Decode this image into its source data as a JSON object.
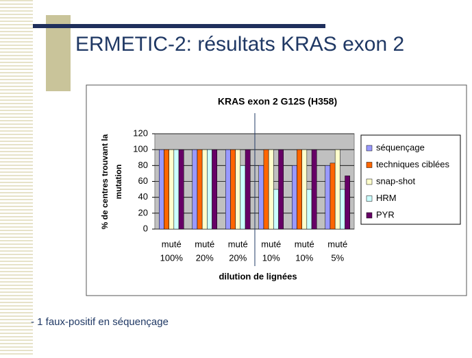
{
  "slide_title": "ERMETIC-2: résultats KRAS exon 2",
  "note": "- 1 faux-positif en séquençage",
  "chart_data": {
    "type": "bar",
    "title": "KRAS exon 2 G12S (H358)",
    "y_label": [
      "% de centres trouvant la",
      "mutation"
    ],
    "x_label": "dilution de lignées",
    "categories": [
      [
        "muté",
        "100%"
      ],
      [
        "muté",
        "20%"
      ],
      [
        "muté",
        "20%"
      ],
      [
        "muté",
        "10%"
      ],
      [
        "muté",
        "10%"
      ],
      [
        "muté",
        "5%"
      ]
    ],
    "series": [
      {
        "name": "séquençage",
        "color": "#9999ff",
        "values": [
          100,
          100,
          100,
          80,
          80,
          80
        ]
      },
      {
        "name": "techniques ciblées",
        "color": "#ff6600",
        "values": [
          100,
          100,
          100,
          100,
          100,
          83
        ]
      },
      {
        "name": "snap-shot",
        "color": "#ffffcc",
        "values": [
          100,
          100,
          100,
          100,
          100,
          100
        ]
      },
      {
        "name": "HRM",
        "color": "#ccffff",
        "values": [
          100,
          100,
          80,
          50,
          50,
          50
        ]
      },
      {
        "name": "PYR",
        "color": "#660066",
        "values": [
          100,
          100,
          100,
          100,
          100,
          67
        ]
      }
    ],
    "ylim": [
      0,
      120
    ],
    "yticks": [
      0,
      20,
      40,
      60,
      80,
      100,
      120
    ],
    "grid": true,
    "legend": "right"
  }
}
